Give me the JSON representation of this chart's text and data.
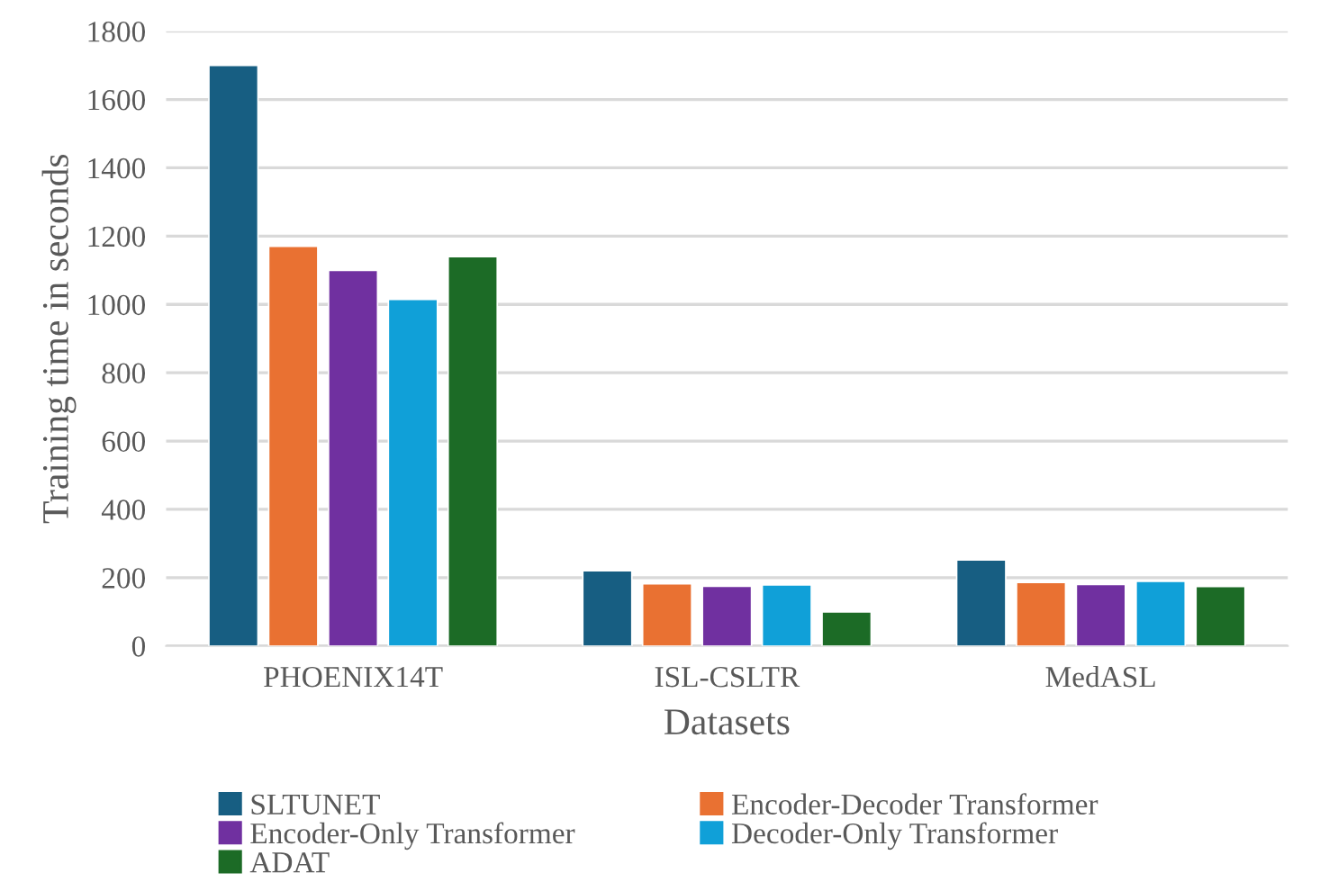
{
  "chart_data": {
    "type": "bar",
    "xlabel": "Datasets",
    "ylabel": "Training time in seconds",
    "categories": [
      "PHOENIX14T",
      "ISL-CSLTR",
      "MedASL"
    ],
    "series": [
      {
        "name": "SLTUNET",
        "color": "#175e82",
        "values": [
          1700,
          220,
          252
        ]
      },
      {
        "name": "Encoder-Decoder Transformer",
        "color": "#e97132",
        "values": [
          1170,
          182,
          186
        ]
      },
      {
        "name": "Encoder-Only Transformer",
        "color": "#7030a0",
        "values": [
          1100,
          175,
          180
        ]
      },
      {
        "name": "Decoder-Only Transformer",
        "color": "#10a0d8",
        "values": [
          1015,
          179,
          189
        ]
      },
      {
        "name": "ADAT",
        "color": "#1c6b26",
        "values": [
          1140,
          100,
          174
        ]
      }
    ],
    "ylim": [
      0,
      1800
    ],
    "yticks": [
      0,
      200,
      400,
      600,
      800,
      1000,
      1200,
      1400,
      1600,
      1800
    ],
    "grid": "y",
    "legend": "bottom"
  }
}
